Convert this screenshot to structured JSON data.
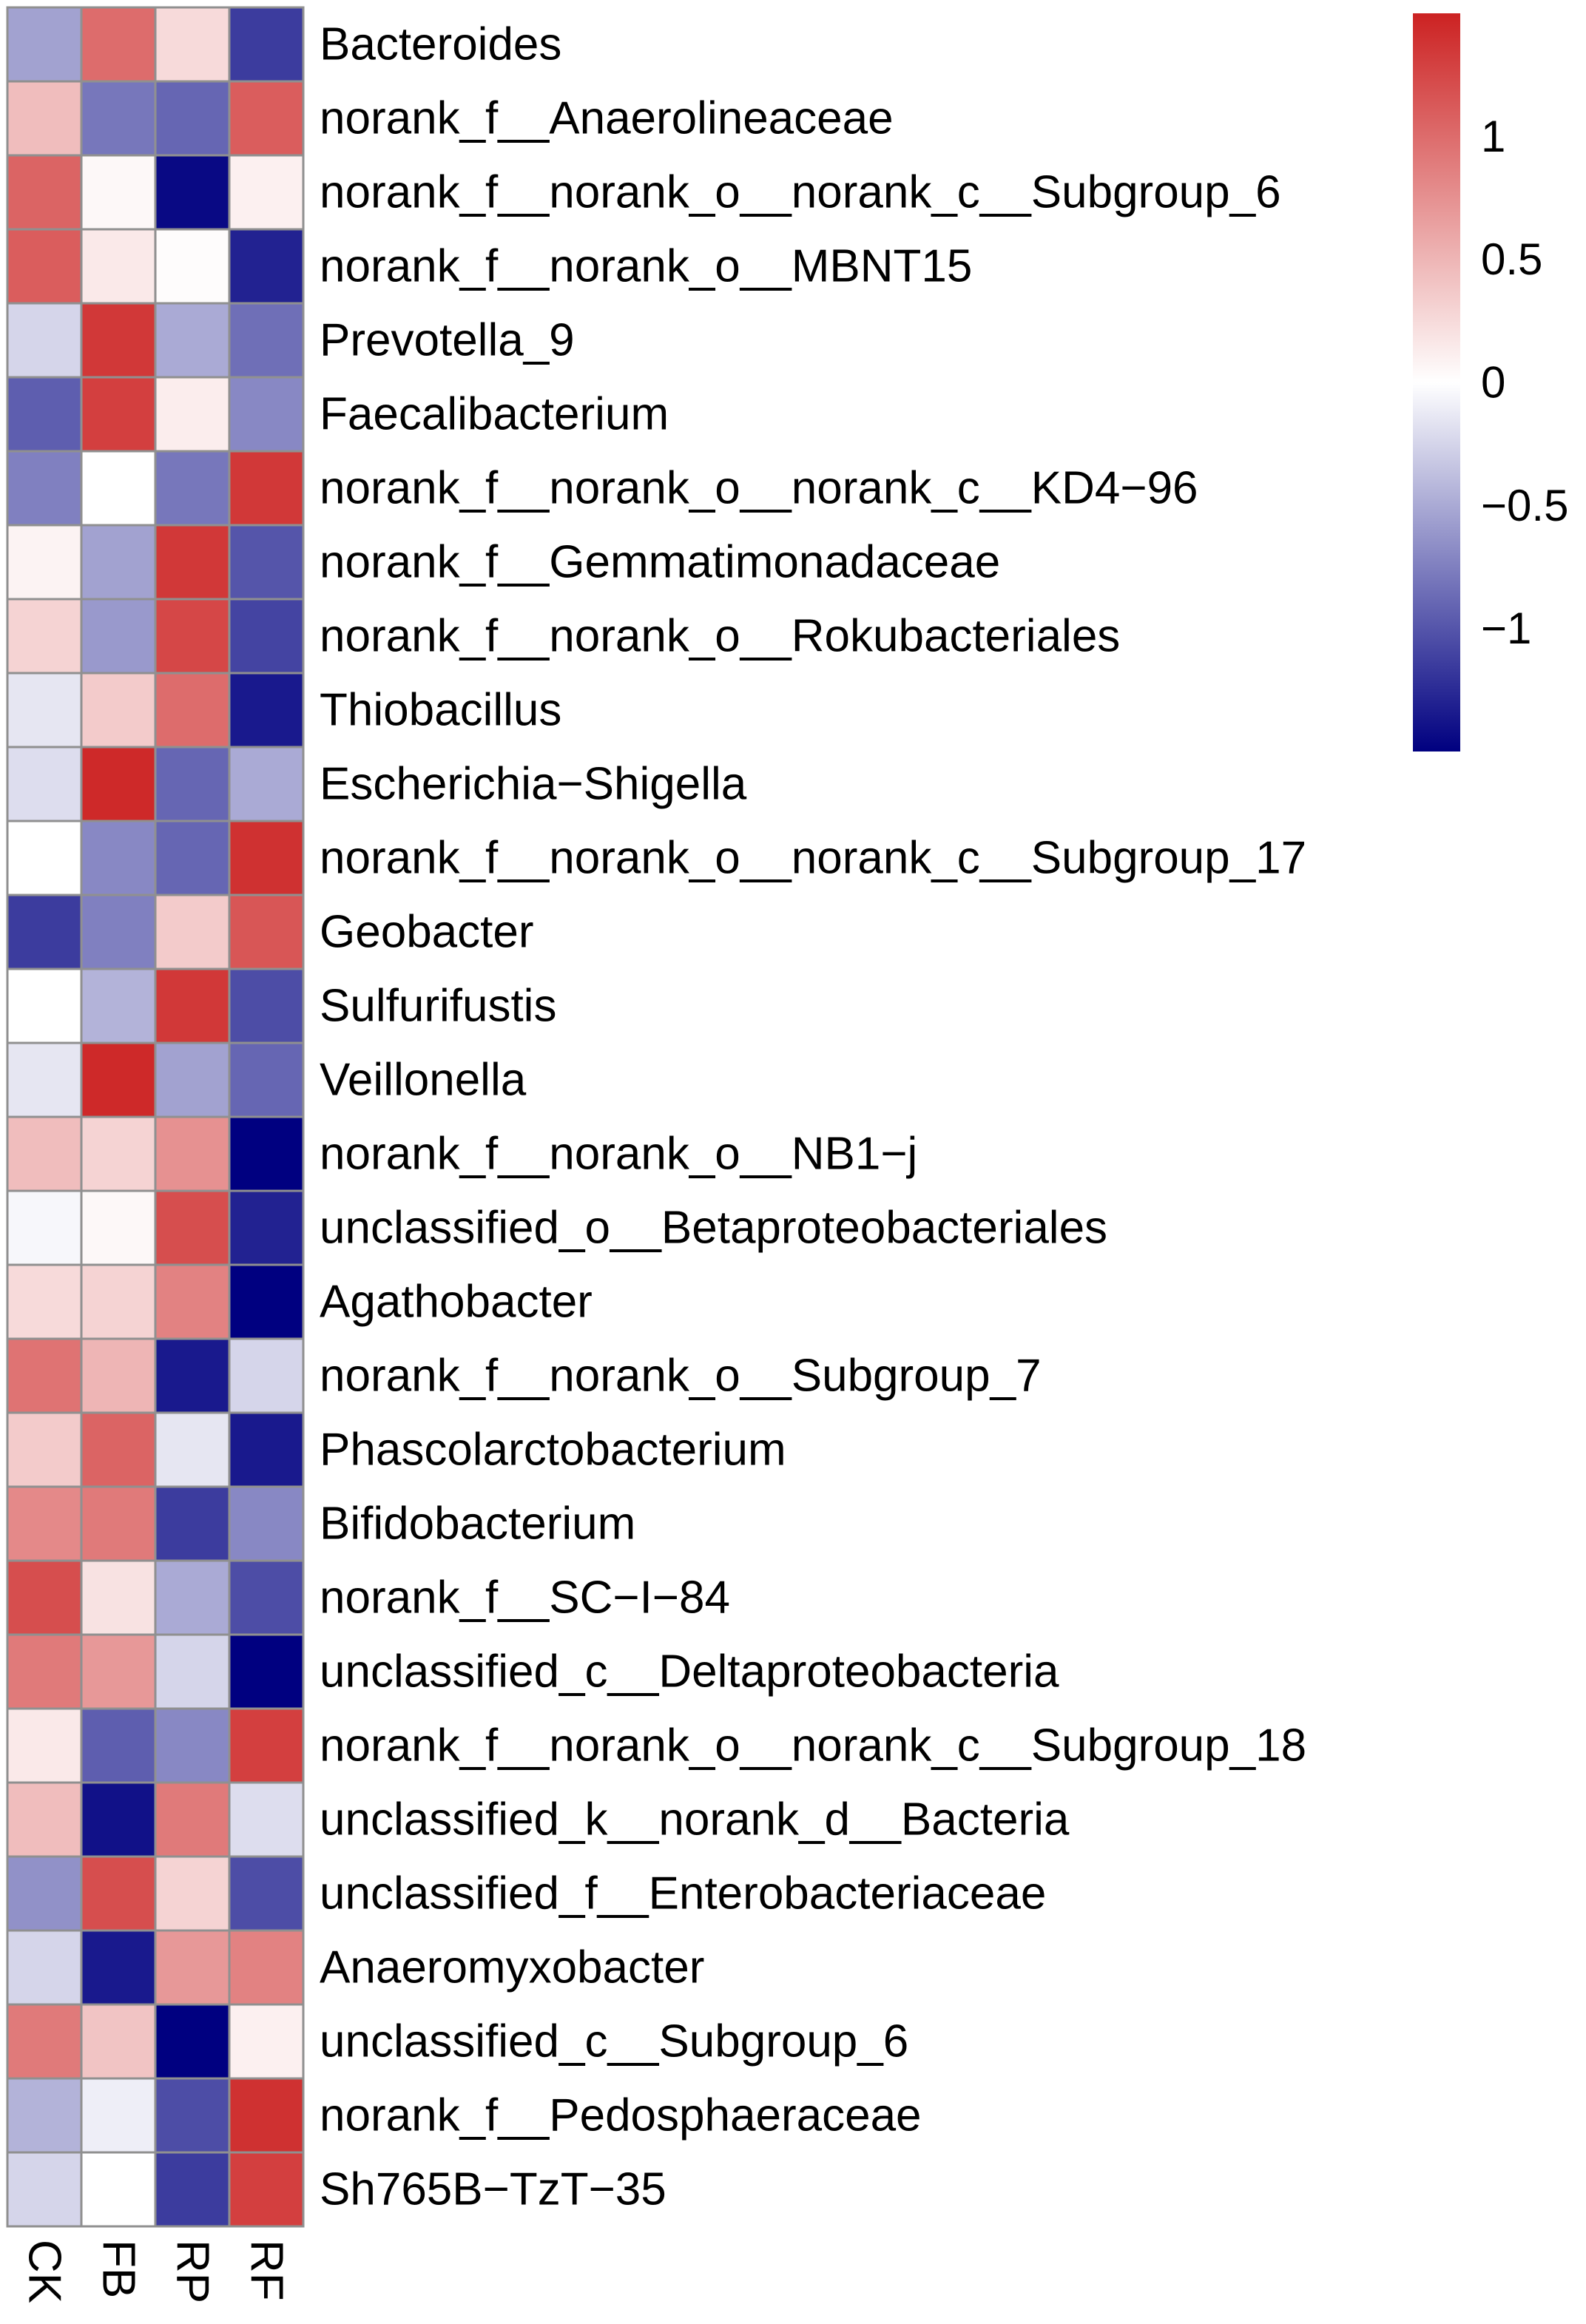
{
  "chart_data": {
    "type": "heatmap",
    "columns": [
      "CK",
      "FB",
      "RP",
      "RF"
    ],
    "rows": [
      "Bacteroides",
      "norank_f__Anaerolineaceae",
      "norank_f__norank_o__norank_c__Subgroup_6",
      "norank_f__norank_o__MBNT15",
      "Prevotella_9",
      "Faecalibacterium",
      "norank_f__norank_o__norank_c__KD4−96",
      "norank_f__Gemmatimonadaceae",
      "norank_f__norank_o__Rokubacteriales",
      "Thiobacillus",
      "Escherichia−Shigella",
      "norank_f__norank_o__norank_c__Subgroup_17",
      "Geobacter",
      "Sulfurifustis",
      "Veillonella",
      "norank_f__norank_o__NB1−j",
      "unclassified_o__Betaproteobacteriales",
      "Agathobacter",
      "norank_f__norank_o__Subgroup_7",
      "Phascolarctobacterium",
      "Bifidobacterium",
      "norank_f__SC−I−84",
      "unclassified_c__Deltaproteobacteria",
      "norank_f__norank_o__norank_c__Subgroup_18",
      "unclassified_k__norank_d__Bacteria",
      "unclassified_f__Enterobacteriaceae",
      "Anaeromyxobacter",
      "unclassified_c__Subgroup_6",
      "norank_f__Pedosphaeraceae",
      "Sh765B−TzT−35"
    ],
    "values": [
      [
        -0.55,
        1.0,
        0.25,
        -1.15
      ],
      [
        0.45,
        -0.8,
        -0.9,
        1.1
      ],
      [
        1.05,
        0.05,
        -1.45,
        0.1
      ],
      [
        1.1,
        0.15,
        0.02,
        -1.3
      ],
      [
        -0.25,
        1.35,
        -0.5,
        -0.85
      ],
      [
        -0.95,
        1.3,
        0.12,
        -0.7
      ],
      [
        -0.75,
        0.0,
        -0.8,
        1.35
      ],
      [
        0.08,
        -0.55,
        1.35,
        -1.0
      ],
      [
        0.3,
        -0.6,
        1.25,
        -1.1
      ],
      [
        -0.15,
        0.35,
        1.0,
        -1.35
      ],
      [
        -0.2,
        1.45,
        -0.9,
        -0.5
      ],
      [
        0.0,
        -0.7,
        -0.9,
        1.4
      ],
      [
        -1.15,
        -0.75,
        0.35,
        1.15
      ],
      [
        0.0,
        -0.45,
        1.35,
        -1.05
      ],
      [
        -0.15,
        1.45,
        -0.55,
        -0.9
      ],
      [
        0.45,
        0.3,
        0.75,
        -1.5
      ],
      [
        -0.05,
        0.05,
        1.2,
        -1.3
      ],
      [
        0.25,
        0.3,
        0.85,
        -1.55
      ],
      [
        0.95,
        0.5,
        -1.35,
        -0.25
      ],
      [
        0.35,
        1.05,
        -0.15,
        -1.35
      ],
      [
        0.8,
        0.9,
        -1.15,
        -0.7
      ],
      [
        1.2,
        0.2,
        -0.5,
        -1.05
      ],
      [
        0.9,
        0.7,
        -0.25,
        -1.5
      ],
      [
        0.15,
        -0.95,
        -0.7,
        1.3
      ],
      [
        0.45,
        -1.4,
        0.9,
        -0.2
      ],
      [
        -0.65,
        1.2,
        0.3,
        -1.05
      ],
      [
        -0.25,
        -1.35,
        0.7,
        0.85
      ],
      [
        0.9,
        0.4,
        -1.65,
        0.1
      ],
      [
        -0.45,
        -0.1,
        -1.05,
        1.4
      ],
      [
        -0.25,
        0.0,
        -1.15,
        1.3
      ]
    ],
    "color_scale": {
      "min": -1.5,
      "max": 1.5,
      "stops": [
        {
          "value": -1.5,
          "color": "#000080"
        },
        {
          "value": 0,
          "color": "#ffffff"
        },
        {
          "value": 1.5,
          "color": "#cc2222"
        }
      ]
    },
    "legend_ticks": [
      {
        "value": 1,
        "label": "1"
      },
      {
        "value": 0.5,
        "label": "0.5"
      },
      {
        "value": 0,
        "label": "0"
      },
      {
        "value": -0.5,
        "label": "−0.5"
      },
      {
        "value": -1,
        "label": "−1"
      }
    ],
    "legend_placement": "top-right",
    "cell_border_color": "#909090"
  }
}
